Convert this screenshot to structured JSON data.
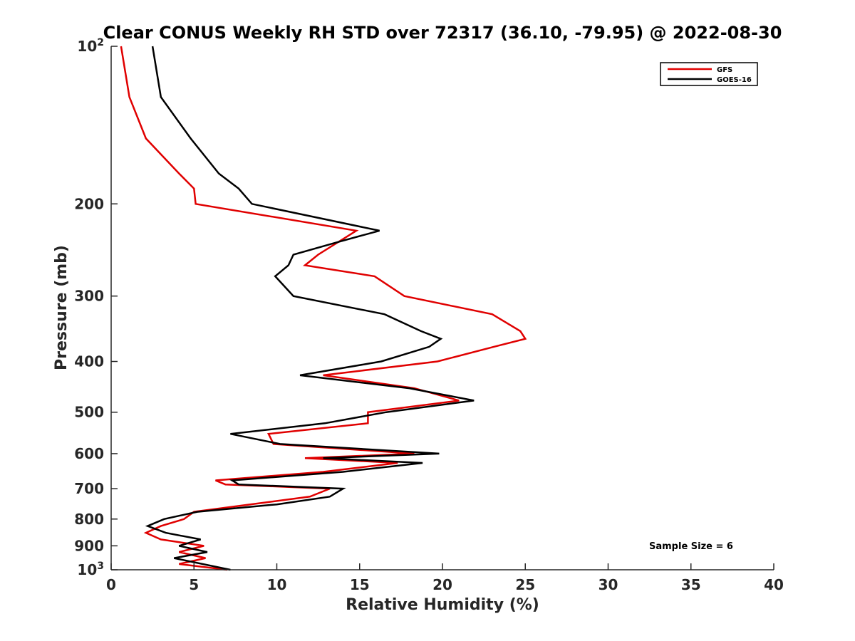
{
  "chart_data": {
    "type": "line",
    "title": "Clear CONUS Weekly RH STD over 72317 (36.10, -79.95) @ 2022-08-30",
    "xlabel": "Relative Humidity (%)",
    "ylabel": "Pressure (mb)",
    "xlim": [
      0,
      40
    ],
    "ylim": [
      100,
      1000
    ],
    "y_scale": "log",
    "y_reversed": true,
    "grid": false,
    "legend_position": "top-right",
    "annotation": "Sample Size = 6",
    "x_ticks": [
      0,
      5,
      10,
      15,
      20,
      25,
      30,
      35,
      40
    ],
    "y_ticks": [
      {
        "value": 100,
        "label": "10",
        "sup": "2"
      },
      {
        "value": 200,
        "label": "200"
      },
      {
        "value": 300,
        "label": "300"
      },
      {
        "value": 400,
        "label": "400"
      },
      {
        "value": 500,
        "label": "500"
      },
      {
        "value": 600,
        "label": "600"
      },
      {
        "value": 700,
        "label": "700"
      },
      {
        "value": 800,
        "label": "800"
      },
      {
        "value": 900,
        "label": "900"
      },
      {
        "value": 1000,
        "label": "10",
        "sup": "3"
      }
    ],
    "series": [
      {
        "name": "GFS",
        "color": "#e00000",
        "points": [
          [
            0.6,
            100
          ],
          [
            1.1,
            125
          ],
          [
            2.1,
            150
          ],
          [
            4.1,
            175
          ],
          [
            5.0,
            187
          ],
          [
            5.1,
            200
          ],
          [
            14.8,
            225
          ],
          [
            12.5,
            250
          ],
          [
            11.7,
            262
          ],
          [
            15.9,
            275
          ],
          [
            17.7,
            300
          ],
          [
            23.0,
            325
          ],
          [
            24.7,
            350
          ],
          [
            25.0,
            362
          ],
          [
            23.1,
            375
          ],
          [
            19.7,
            400
          ],
          [
            12.8,
            425
          ],
          [
            18.3,
            450
          ],
          [
            21.0,
            475
          ],
          [
            15.5,
            500
          ],
          [
            15.5,
            525
          ],
          [
            9.5,
            550
          ],
          [
            9.8,
            575
          ],
          [
            18.3,
            600
          ],
          [
            11.7,
            612
          ],
          [
            17.3,
            625
          ],
          [
            12.8,
            650
          ],
          [
            6.3,
            675
          ],
          [
            6.9,
            687
          ],
          [
            13.2,
            700
          ],
          [
            12.0,
            725
          ],
          [
            8.4,
            750
          ],
          [
            5.0,
            775
          ],
          [
            4.4,
            800
          ],
          [
            3.0,
            825
          ],
          [
            2.1,
            850
          ],
          [
            3.0,
            875
          ],
          [
            5.6,
            900
          ],
          [
            4.1,
            925
          ],
          [
            5.7,
            950
          ],
          [
            4.1,
            975
          ],
          [
            7.0,
            1000
          ]
        ]
      },
      {
        "name": "GOES-16",
        "color": "#000000",
        "points": [
          [
            2.5,
            100
          ],
          [
            3.0,
            125
          ],
          [
            4.8,
            150
          ],
          [
            6.5,
            175
          ],
          [
            7.7,
            187
          ],
          [
            8.5,
            200
          ],
          [
            16.2,
            225
          ],
          [
            13.6,
            237
          ],
          [
            11.0,
            250
          ],
          [
            10.7,
            262
          ],
          [
            9.9,
            275
          ],
          [
            11.0,
            300
          ],
          [
            16.5,
            325
          ],
          [
            18.7,
            350
          ],
          [
            19.9,
            362
          ],
          [
            19.2,
            375
          ],
          [
            16.3,
            400
          ],
          [
            11.4,
            425
          ],
          [
            18.0,
            450
          ],
          [
            21.9,
            475
          ],
          [
            16.6,
            500
          ],
          [
            12.9,
            525
          ],
          [
            7.2,
            550
          ],
          [
            10.2,
            575
          ],
          [
            19.8,
            600
          ],
          [
            12.8,
            612
          ],
          [
            18.8,
            625
          ],
          [
            14.0,
            650
          ],
          [
            7.3,
            675
          ],
          [
            7.7,
            687
          ],
          [
            14.0,
            700
          ],
          [
            13.2,
            725
          ],
          [
            10.0,
            750
          ],
          [
            5.2,
            775
          ],
          [
            3.2,
            800
          ],
          [
            2.2,
            825
          ],
          [
            3.3,
            850
          ],
          [
            5.4,
            875
          ],
          [
            4.1,
            900
          ],
          [
            5.8,
            925
          ],
          [
            3.8,
            950
          ],
          [
            7.2,
            1000
          ]
        ]
      }
    ]
  }
}
